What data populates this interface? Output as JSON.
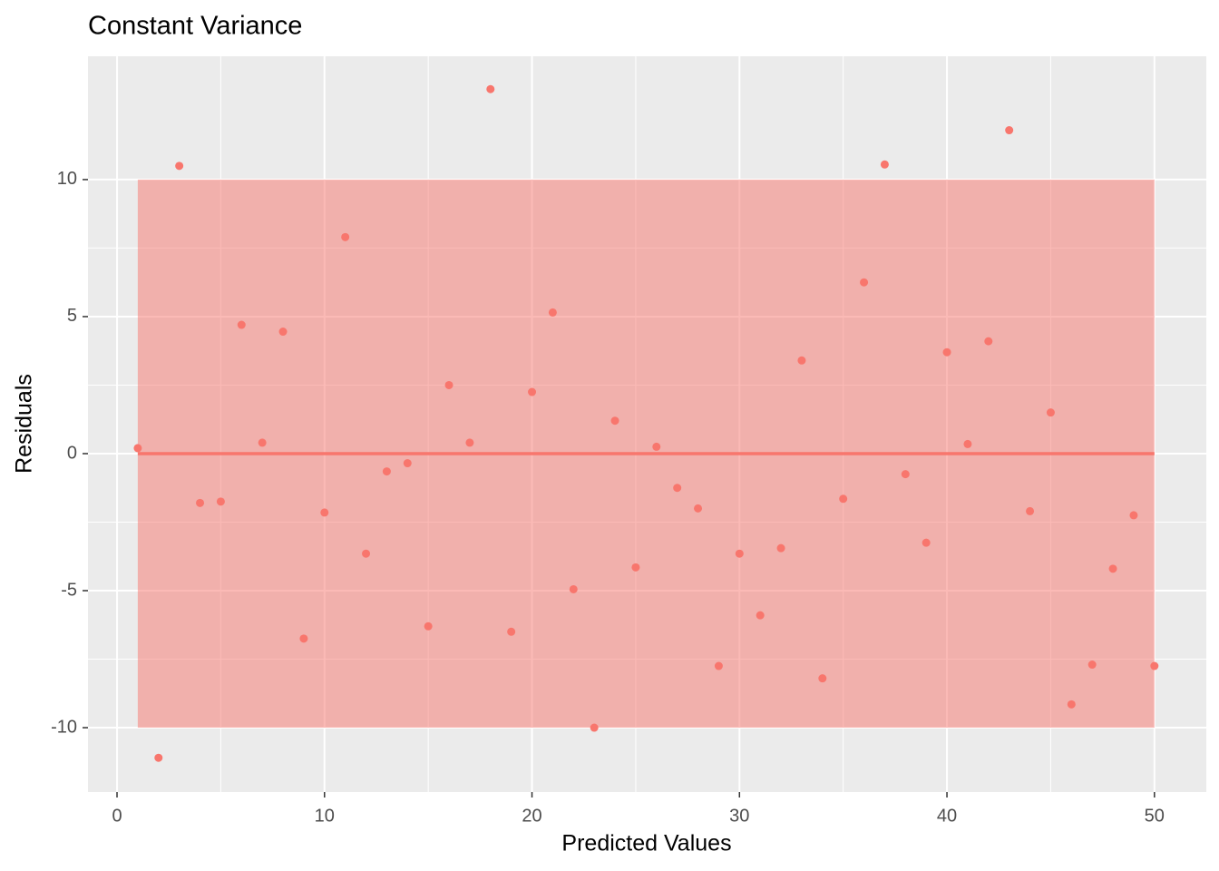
{
  "chart_data": {
    "type": "scatter",
    "title": "Constant Variance",
    "x_label": "Predicted Values",
    "y_label": "Residuals",
    "x": [
      1,
      2,
      3,
      4,
      5,
      6,
      7,
      8,
      9,
      10,
      11,
      12,
      13,
      14,
      15,
      16,
      17,
      18,
      19,
      20,
      21,
      22,
      23,
      24,
      25,
      26,
      27,
      28,
      29,
      30,
      31,
      32,
      33,
      34,
      35,
      36,
      37,
      38,
      39,
      40,
      41,
      42,
      43,
      44,
      45,
      46,
      47,
      48,
      49,
      50
    ],
    "values": [
      0.2,
      -11.1,
      10.5,
      -1.8,
      -1.75,
      4.7,
      0.4,
      4.45,
      -6.75,
      -2.15,
      7.9,
      -3.65,
      -0.65,
      -0.35,
      -6.3,
      2.5,
      0.4,
      13.3,
      -6.5,
      2.25,
      5.15,
      -4.95,
      -10,
      1.2,
      -4.15,
      0.25,
      -1.25,
      -2,
      -7.75,
      -3.65,
      -5.9,
      -3.45,
      3.4,
      -8.2,
      -1.65,
      6.25,
      10.55,
      -0.75,
      -3.25,
      3.7,
      0.35,
      4.1,
      11.8,
      -2.1,
      1.5,
      -9.15,
      -7.7,
      -4.2,
      -2.25,
      -7.75
    ],
    "color": "#F8766D",
    "reference_line": 0,
    "band": [
      -10,
      10
    ],
    "xlim": [
      -1.4,
      52.5
    ],
    "xticks": [
      0,
      10,
      20,
      30,
      40,
      50
    ],
    "ylim": [
      -12.35,
      14.5
    ],
    "yticks": [
      -10,
      -5,
      0,
      5,
      10
    ],
    "grid": true
  }
}
